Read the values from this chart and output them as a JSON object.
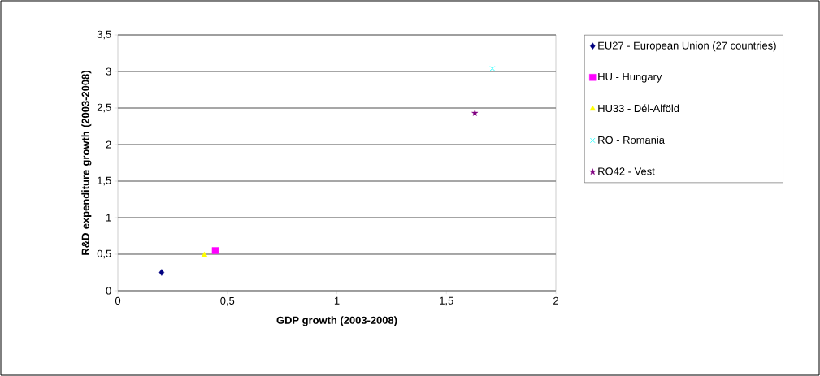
{
  "chart_data": {
    "type": "scatter",
    "xlabel": "GDP growth (2003-2008)",
    "ylabel": "R&D expenditure growth (2003-2008)",
    "xlim": [
      0,
      2
    ],
    "ylim": [
      0,
      3.5
    ],
    "xticks": [
      0,
      {
        "value": 0.5,
        "label": "0,5"
      },
      1,
      {
        "value": 1.5,
        "label": "1,5"
      },
      2
    ],
    "yticks": [
      0,
      {
        "value": 0.5,
        "label": "0,5"
      },
      1,
      {
        "value": 1.5,
        "label": "1,5"
      },
      2,
      {
        "value": 2.5,
        "label": "2,5"
      },
      3,
      {
        "value": 3.5,
        "label": "3,5"
      }
    ],
    "grid": "y",
    "legend": "right",
    "series": [
      {
        "name": "EU27 - European Union (27 countries)",
        "color": "#000080",
        "marker": "diamond",
        "x": [
          0.2
        ],
        "values": [
          0.25
        ]
      },
      {
        "name": "HU - Hungary",
        "color": "#ff00ff",
        "marker": "square",
        "x": [
          0.445
        ],
        "values": [
          0.55
        ]
      },
      {
        "name": "HU33 - Dél-Alföld",
        "color": "#ffff00",
        "marker": "triangle",
        "x": [
          0.395
        ],
        "values": [
          0.49
        ]
      },
      {
        "name": "RO - Romania",
        "color": "#00ffff",
        "marker": "cross",
        "x": [
          1.71
        ],
        "values": [
          3.04
        ]
      },
      {
        "name": "RO42 - Vest",
        "color": "#800080",
        "marker": "star",
        "x": [
          1.63
        ],
        "values": [
          2.43
        ]
      }
    ]
  }
}
